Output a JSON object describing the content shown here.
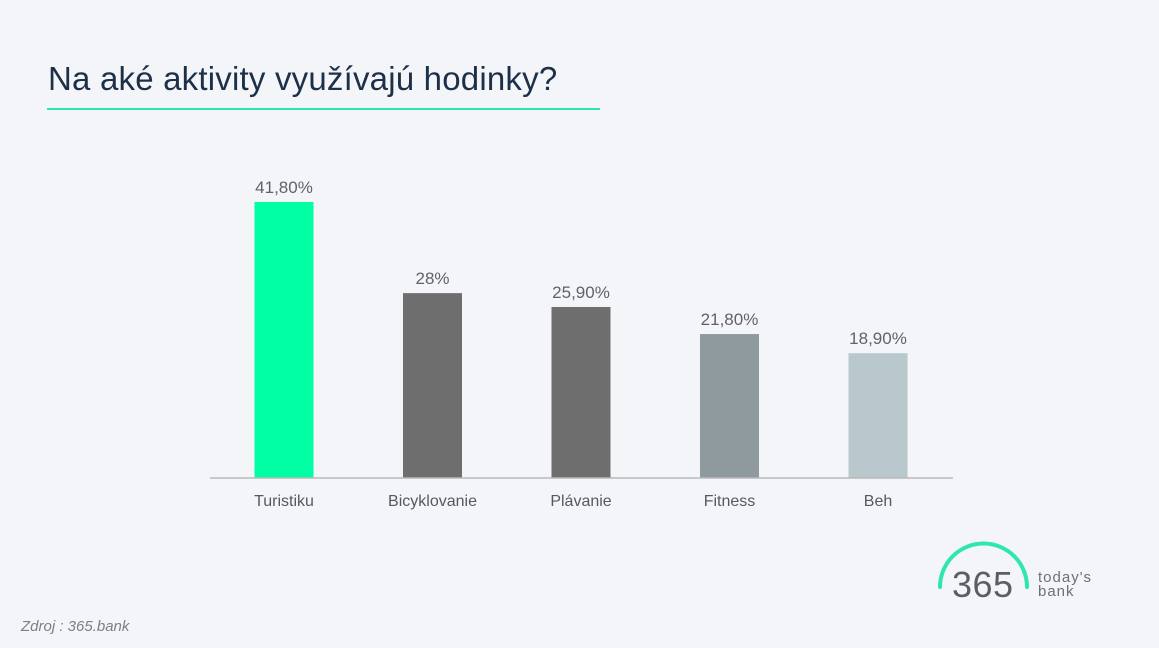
{
  "slide": {
    "title": "Na aké aktivity využívajú hodinky?",
    "source": "Zdroj : 365.bank",
    "accent_color": "#2de6b0"
  },
  "logo": {
    "number": "365",
    "word_line1": "today's",
    "word_line2": "bank"
  },
  "chart_data": {
    "type": "bar",
    "categories": [
      "Turistiku",
      "Bicyklovanie",
      "Plávanie",
      "Fitness",
      "Beh"
    ],
    "values": [
      41.8,
      28,
      25.9,
      21.8,
      18.9
    ],
    "value_labels": [
      "41,80%",
      "28%",
      "25,90%",
      "21,80%",
      "18,90%"
    ],
    "bar_colors": [
      "#00ffa3",
      "#6e6e6e",
      "#6e6e6e",
      "#8f9a9e",
      "#b8c8cc"
    ],
    "ylim": [
      0,
      41.8
    ],
    "grid": false,
    "legend": "none"
  }
}
